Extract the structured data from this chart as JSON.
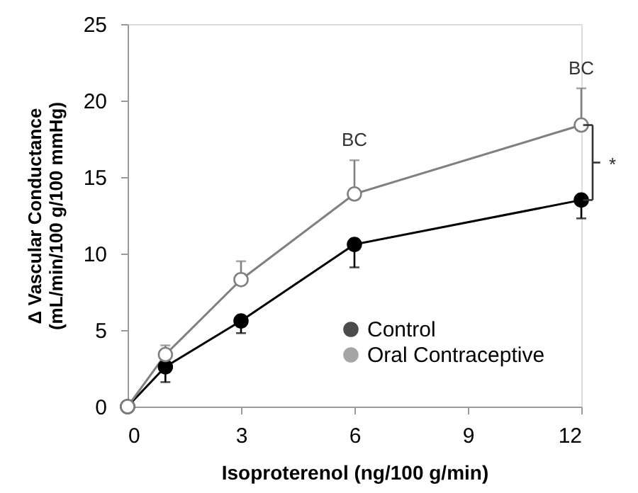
{
  "chart_data": {
    "type": "line",
    "xlabel": "Isoproterenol (ng/100 g/min)",
    "ylabel": "Δ Vascular Conductance\n(mL/min/100  g/100 mmHg)",
    "x": [
      0,
      1,
      3,
      6,
      12
    ],
    "series": [
      {
        "name": "Control",
        "color": "#000000",
        "values": [
          0,
          2.6,
          5.6,
          10.6,
          13.5
        ],
        "errors": [
          null,
          [
            1.6,
            2.6
          ],
          [
            4.8,
            5.6
          ],
          [
            9.1,
            10.6
          ],
          [
            12.3,
            13.5
          ]
        ]
      },
      {
        "name": "Oral Contraceptive",
        "color": "#808080",
        "marker": "open circle",
        "values": [
          0,
          3.4,
          8.3,
          13.9,
          18.4
        ],
        "errors": [
          null,
          [
            3.4,
            4.0
          ],
          [
            8.3,
            9.5
          ],
          [
            13.9,
            16.1
          ],
          [
            18.4,
            20.8
          ]
        ]
      }
    ],
    "annotations": [
      "BC",
      "BC",
      "*"
    ],
    "xlim": [
      0,
      12
    ],
    "xticks": [
      0,
      3,
      6,
      9,
      12
    ],
    "ylim": [
      0,
      25
    ],
    "yticks": [
      0,
      5,
      10,
      15,
      20,
      25
    ],
    "grid": false,
    "legend": "bottom right",
    "marker": "circle",
    "line_style": "solid"
  }
}
